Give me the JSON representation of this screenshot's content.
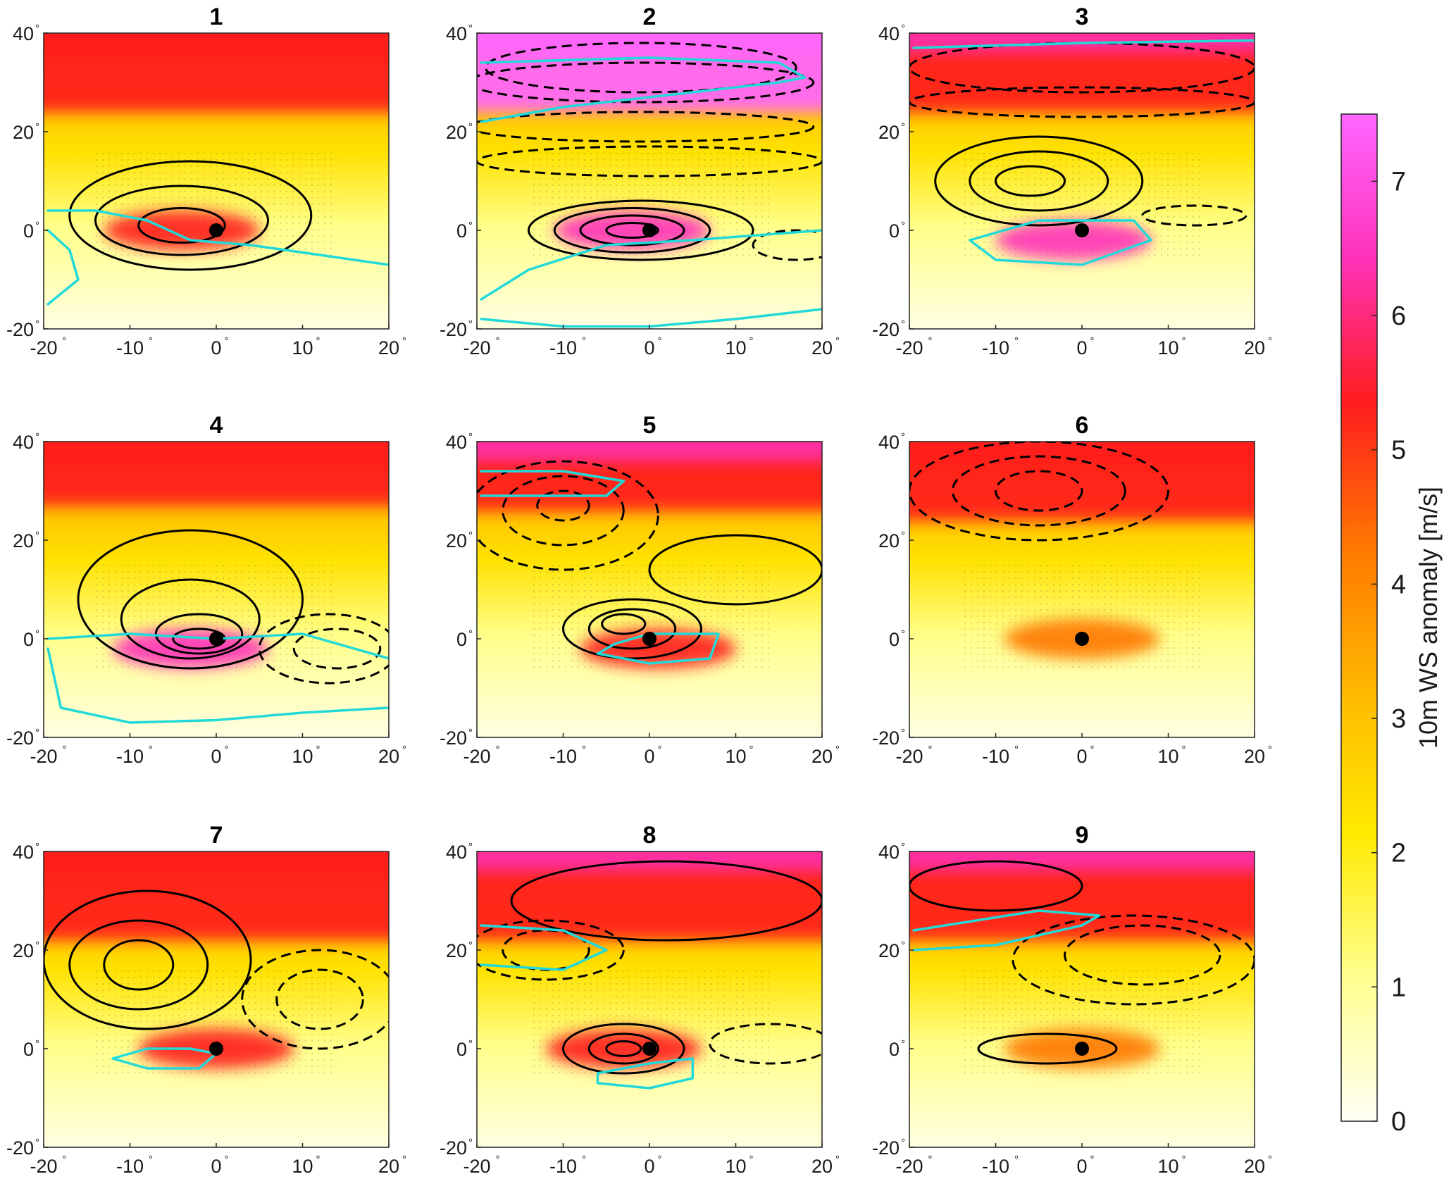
{
  "chart_data": {
    "type": "heatmap",
    "panels": [
      {
        "title": "1",
        "feature": {
          "x": 0,
          "y": 0
        },
        "hot_spots": [
          {
            "x": -4,
            "y": 0,
            "v": 5.3
          }
        ],
        "solid_contours": [
          {
            "cx": -3,
            "cy": 3,
            "rx": 14,
            "ry": 11
          },
          {
            "cx": -4,
            "cy": 2,
            "rx": 10,
            "ry": 7
          },
          {
            "cx": -4,
            "cy": 1,
            "rx": 5,
            "ry": 3.5
          }
        ],
        "dashed_contours": [],
        "cyan_contours": [
          [
            [
              -19.5,
              4
            ],
            [
              -14,
              4
            ],
            [
              -8,
              2
            ],
            [
              -3,
              -2
            ],
            [
              4,
              -3
            ],
            [
              12,
              -5
            ],
            [
              20,
              -7
            ]
          ],
          [
            [
              -19.5,
              -15
            ],
            [
              -16,
              -10
            ],
            [
              -17,
              -4
            ],
            [
              -19.5,
              0
            ]
          ]
        ],
        "jet": {
          "y": 32,
          "v": 5.4
        },
        "jet_top_peak": {
          "v": 5.2
        }
      },
      {
        "title": "2",
        "feature": {
          "x": 0,
          "y": 0
        },
        "hot_spots": [
          {
            "x": -2,
            "y": 0,
            "v": 6.3
          }
        ],
        "solid_contours": [
          {
            "cx": -1,
            "cy": 0,
            "rx": 13,
            "ry": 6
          },
          {
            "cx": -2,
            "cy": 0,
            "rx": 9,
            "ry": 4.5
          },
          {
            "cx": -2,
            "cy": 0,
            "rx": 6,
            "ry": 3
          },
          {
            "cx": -2,
            "cy": 0,
            "rx": 3,
            "ry": 1.5
          }
        ],
        "dashed_contours": [
          {
            "cx": -1,
            "cy": 33,
            "rx": 18,
            "ry": 5
          },
          {
            "cx": -1,
            "cy": 30,
            "rx": 20,
            "ry": 4
          },
          {
            "cx": -1,
            "cy": 21,
            "rx": 20,
            "ry": 3
          },
          {
            "cx": 0,
            "cy": 14,
            "rx": 20,
            "ry": 3
          },
          {
            "cx": 17,
            "cy": -3,
            "rx": 5,
            "ry": 3
          }
        ],
        "cyan_contours": [
          [
            [
              -19.5,
              22
            ],
            [
              -10,
              25
            ],
            [
              0,
              27
            ],
            [
              15,
              30
            ],
            [
              18,
              31
            ],
            [
              15,
              34
            ],
            [
              0,
              35
            ],
            [
              -19.5,
              34
            ]
          ],
          [
            [
              -19.5,
              -14
            ],
            [
              -14,
              -8
            ],
            [
              -5,
              -3
            ],
            [
              5,
              -2
            ],
            [
              20,
              0
            ]
          ],
          [
            [
              -19.5,
              -18
            ],
            [
              -10,
              -19.5
            ],
            [
              0,
              -19.5
            ],
            [
              10,
              -18
            ],
            [
              20,
              -16
            ]
          ]
        ],
        "jet": {
          "y": 32,
          "v": 7.1
        },
        "jet_top_peak": {
          "v": 7.3
        }
      },
      {
        "title": "3",
        "feature": {
          "x": 0,
          "y": 0
        },
        "hot_spots": [
          {
            "x": -1,
            "y": -2,
            "v": 6.0
          }
        ],
        "solid_contours": [
          {
            "cx": -5,
            "cy": 10,
            "rx": 12,
            "ry": 9
          },
          {
            "cx": -5,
            "cy": 10,
            "rx": 8,
            "ry": 6
          },
          {
            "cx": -6,
            "cy": 10,
            "rx": 4,
            "ry": 3
          }
        ],
        "dashed_contours": [
          {
            "cx": 0,
            "cy": 33,
            "rx": 20,
            "ry": 5
          },
          {
            "cx": 0,
            "cy": 26,
            "rx": 20,
            "ry": 3
          },
          {
            "cx": 13,
            "cy": 3,
            "rx": 6,
            "ry": 2
          }
        ],
        "cyan_contours": [
          [
            [
              -13,
              -2
            ],
            [
              -10,
              -6
            ],
            [
              0,
              -7
            ],
            [
              8,
              -2
            ],
            [
              6,
              2
            ],
            [
              -5,
              2
            ],
            [
              -13,
              -2
            ]
          ],
          [
            [
              -19.5,
              37
            ],
            [
              0,
              38
            ],
            [
              20,
              38.5
            ]
          ]
        ],
        "jet": {
          "y": 32,
          "v": 5.8
        },
        "jet_top_peak": {
          "v": 6.0
        }
      },
      {
        "title": "4",
        "feature": {
          "x": 0,
          "y": 0
        },
        "hot_spots": [
          {
            "x": -3,
            "y": -2,
            "v": 6.1
          }
        ],
        "solid_contours": [
          {
            "cx": -3,
            "cy": 8,
            "rx": 13,
            "ry": 14
          },
          {
            "cx": -3,
            "cy": 4,
            "rx": 8,
            "ry": 8
          },
          {
            "cx": -2,
            "cy": 1,
            "rx": 5,
            "ry": 4
          },
          {
            "cx": -2,
            "cy": 0,
            "rx": 3,
            "ry": 2
          }
        ],
        "dashed_contours": [
          {
            "cx": 13,
            "cy": -2,
            "rx": 8,
            "ry": 7
          },
          {
            "cx": 14,
            "cy": -2,
            "rx": 5,
            "ry": 4
          }
        ],
        "cyan_contours": [
          [
            [
              -19.5,
              0
            ],
            [
              -10,
              1
            ],
            [
              0,
              0
            ],
            [
              10,
              1
            ],
            [
              20,
              -4
            ]
          ],
          [
            [
              -19.5,
              -2
            ],
            [
              -18,
              -14
            ],
            [
              -10,
              -17
            ],
            [
              0,
              -16.5
            ],
            [
              10,
              -15
            ],
            [
              20,
              -14
            ]
          ]
        ],
        "jet": {
          "y": 35,
          "v": 5.5
        },
        "jet_top_peak": {
          "v": 5.7
        }
      },
      {
        "title": "5",
        "feature": {
          "x": 0,
          "y": 0
        },
        "hot_spots": [
          {
            "x": 1,
            "y": -2,
            "v": 5.5
          }
        ],
        "solid_contours": [
          {
            "cx": -2,
            "cy": 2,
            "rx": 8,
            "ry": 6
          },
          {
            "cx": -2,
            "cy": 2,
            "rx": 5,
            "ry": 4
          },
          {
            "cx": -3,
            "cy": 3,
            "rx": 2.5,
            "ry": 2
          },
          {
            "cx": 10,
            "cy": 14,
            "rx": 10,
            "ry": 7
          }
        ],
        "dashed_contours": [
          {
            "cx": -10,
            "cy": 25,
            "rx": 11,
            "ry": 11
          },
          {
            "cx": -10,
            "cy": 26,
            "rx": 7,
            "ry": 7
          },
          {
            "cx": -10,
            "cy": 27,
            "rx": 3,
            "ry": 3
          }
        ],
        "cyan_contours": [
          [
            [
              -4,
              -1
            ],
            [
              0,
              1
            ],
            [
              8,
              1
            ],
            [
              7,
              -4
            ],
            [
              0,
              -5
            ],
            [
              -6,
              -3
            ],
            [
              -4,
              -1
            ]
          ],
          [
            [
              -19.5,
              34
            ],
            [
              -10,
              34
            ],
            [
              -3,
              32
            ],
            [
              -5,
              29
            ],
            [
              -15,
              29
            ],
            [
              -19.5,
              29
            ]
          ]
        ],
        "jet": {
          "y": 34,
          "v": 5.8
        },
        "jet_top_peak": {
          "v": 6.5
        }
      },
      {
        "title": "6",
        "feature": {
          "x": 0,
          "y": 0
        },
        "hot_spots": [
          {
            "x": 0,
            "y": 0,
            "v": 4.5
          }
        ],
        "solid_contours": [],
        "dashed_contours": [
          {
            "cx": -5,
            "cy": 30,
            "rx": 15,
            "ry": 10
          },
          {
            "cx": -5,
            "cy": 30,
            "rx": 10,
            "ry": 7
          },
          {
            "cx": -5,
            "cy": 30,
            "rx": 5,
            "ry": 4
          }
        ],
        "cyan_contours": [],
        "jet": {
          "y": 32,
          "v": 5.0
        },
        "jet_top_peak": {
          "v": 5.5
        }
      },
      {
        "title": "7",
        "feature": {
          "x": 0,
          "y": 0
        },
        "hot_spots": [
          {
            "x": 0,
            "y": 0,
            "v": 5.5
          }
        ],
        "solid_contours": [
          {
            "cx": -8,
            "cy": 18,
            "rx": 12,
            "ry": 14
          },
          {
            "cx": -9,
            "cy": 17,
            "rx": 8,
            "ry": 9
          },
          {
            "cx": -9,
            "cy": 17,
            "rx": 4,
            "ry": 5
          }
        ],
        "dashed_contours": [
          {
            "cx": 12,
            "cy": 10,
            "rx": 9,
            "ry": 10
          },
          {
            "cx": 12,
            "cy": 10,
            "rx": 5,
            "ry": 6
          }
        ],
        "cyan_contours": [
          [
            [
              -12,
              -2
            ],
            [
              -8,
              0
            ],
            [
              -3,
              0
            ],
            [
              0,
              -1
            ],
            [
              -2,
              -4
            ],
            [
              -8,
              -4
            ],
            [
              -12,
              -2
            ]
          ]
        ],
        "jet": {
          "y": 30,
          "v": 5.3
        },
        "jet_top_peak": {
          "v": 5.5
        }
      },
      {
        "title": "8",
        "feature": {
          "x": 0,
          "y": 0
        },
        "hot_spots": [
          {
            "x": -3,
            "y": 0,
            "v": 5.8
          }
        ],
        "solid_contours": [
          {
            "cx": -3,
            "cy": 0,
            "rx": 7,
            "ry": 5
          },
          {
            "cx": -3,
            "cy": 0,
            "rx": 4,
            "ry": 3
          },
          {
            "cx": -3,
            "cy": 0,
            "rx": 2,
            "ry": 1.5
          },
          {
            "cx": 2,
            "cy": 30,
            "rx": 18,
            "ry": 8
          }
        ],
        "dashed_contours": [
          {
            "cx": -12,
            "cy": 20,
            "rx": 9,
            "ry": 6
          },
          {
            "cx": -12,
            "cy": 20,
            "rx": 5,
            "ry": 4
          },
          {
            "cx": 14,
            "cy": 1,
            "rx": 7,
            "ry": 4
          }
        ],
        "cyan_contours": [
          [
            [
              -19.5,
              25
            ],
            [
              -10,
              24
            ],
            [
              -5,
              20
            ],
            [
              -10,
              16
            ],
            [
              -19.5,
              17
            ]
          ],
          [
            [
              -6,
              -5
            ],
            [
              0,
              -3
            ],
            [
              5,
              -2
            ],
            [
              5,
              -6
            ],
            [
              0,
              -8
            ],
            [
              -6,
              -7
            ],
            [
              -6,
              -5
            ]
          ]
        ],
        "jet": {
          "y": 30,
          "v": 5.4
        },
        "jet_top_peak": {
          "v": 5.9
        }
      },
      {
        "title": "9",
        "feature": {
          "x": 0,
          "y": 0
        },
        "hot_spots": [
          {
            "x": 0,
            "y": 0,
            "v": 4.5
          }
        ],
        "solid_contours": [
          {
            "cx": -4,
            "cy": 0,
            "rx": 8,
            "ry": 3
          },
          {
            "cx": -10,
            "cy": 33,
            "rx": 10,
            "ry": 5
          }
        ],
        "dashed_contours": [
          {
            "cx": 6,
            "cy": 18,
            "rx": 14,
            "ry": 9
          },
          {
            "cx": 7,
            "cy": 19,
            "rx": 9,
            "ry": 6
          }
        ],
        "cyan_contours": [
          [
            [
              -19.5,
              20
            ],
            [
              -10,
              21
            ],
            [
              0,
              25
            ],
            [
              2,
              27
            ],
            [
              -5,
              28
            ],
            [
              -19.5,
              24
            ]
          ]
        ],
        "jet": {
          "y": 30,
          "v": 5.5
        },
        "jet_top_peak": {
          "v": 6.0
        }
      }
    ],
    "xlim": [
      -20,
      20
    ],
    "ylim": [
      -20,
      40
    ],
    "xticks": [
      "-20",
      "-10",
      "0",
      "10",
      "20"
    ],
    "yticks": [
      "40",
      "20",
      "0",
      "-20"
    ],
    "degree_symbol": "°",
    "colorbar": {
      "label": "10m WS anomaly [m/s]",
      "range": [
        0,
        7.5
      ],
      "ticks": [
        "7",
        "6",
        "5",
        "4",
        "3",
        "2",
        "1",
        "0"
      ],
      "colormap": [
        "#fffff4",
        "#ffff90",
        "#ffea00",
        "#ffb800",
        "#ff7700",
        "#ff1d1d",
        "#ff33bb",
        "#ff66ff"
      ]
    },
    "colors": {
      "solid_contour": "#000000",
      "dashed_contour": "#000000",
      "cyan_contour": "#22d9d9",
      "feature_marker": "#000000"
    }
  }
}
